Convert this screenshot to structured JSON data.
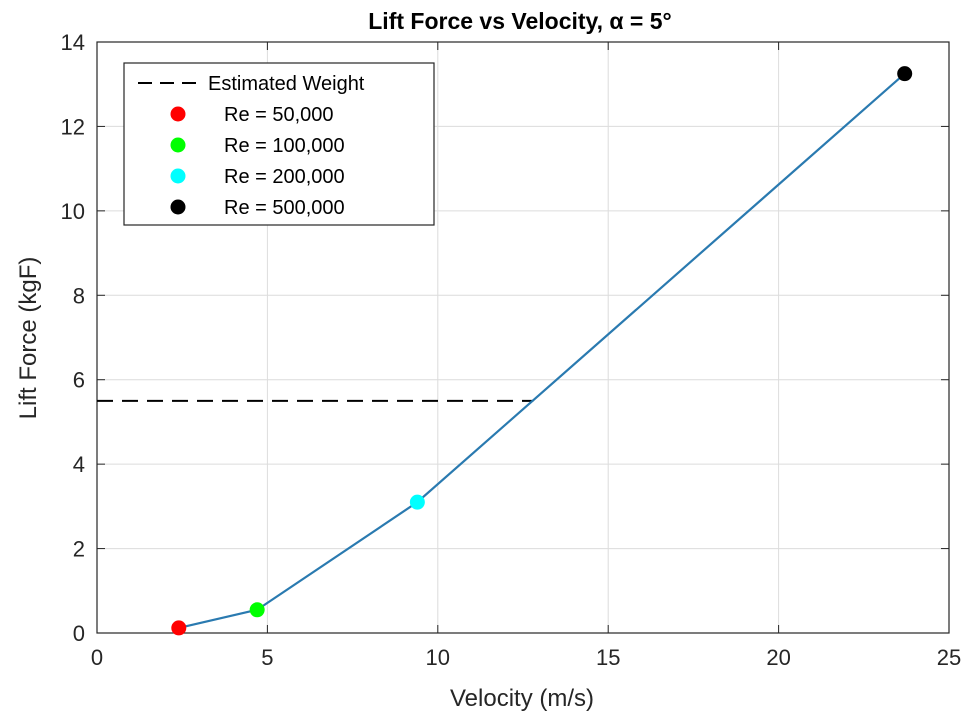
{
  "chart_data": {
    "type": "line",
    "title": "Lift Force vs Velocity, α = 5°",
    "xlabel": "Velocity (m/s)",
    "ylabel": "Lift Force (kgF)",
    "xlim": [
      0,
      25
    ],
    "ylim": [
      0,
      14
    ],
    "xticks": [
      "0",
      "5",
      "10",
      "15",
      "20",
      "25"
    ],
    "yticks": [
      "0",
      "2",
      "4",
      "6",
      "8",
      "10",
      "12",
      "14"
    ],
    "grid": true,
    "legend_position": "top-left",
    "line_color": "#2a7ab0",
    "series": [
      {
        "name": "Lift Force",
        "x": [
          2.4,
          4.7,
          9.4,
          23.7
        ],
        "y": [
          0.12,
          0.55,
          3.1,
          13.25
        ]
      }
    ],
    "points": [
      {
        "label": "Re = 50,000",
        "x": 2.4,
        "y": 0.12,
        "color": "#ff0000"
      },
      {
        "label": "Re = 100,000",
        "x": 4.7,
        "y": 0.55,
        "color": "#00ff00"
      },
      {
        "label": "Re = 200,000",
        "x": 9.4,
        "y": 3.1,
        "color": "#00ffff"
      },
      {
        "label": "Re = 500,000",
        "x": 23.7,
        "y": 13.25,
        "color": "#000000"
      }
    ],
    "reference_line": {
      "label": "Estimated Weight",
      "y": 5.5,
      "x_range": [
        0,
        12.8
      ],
      "style": "dashed",
      "color": "#000000"
    }
  }
}
